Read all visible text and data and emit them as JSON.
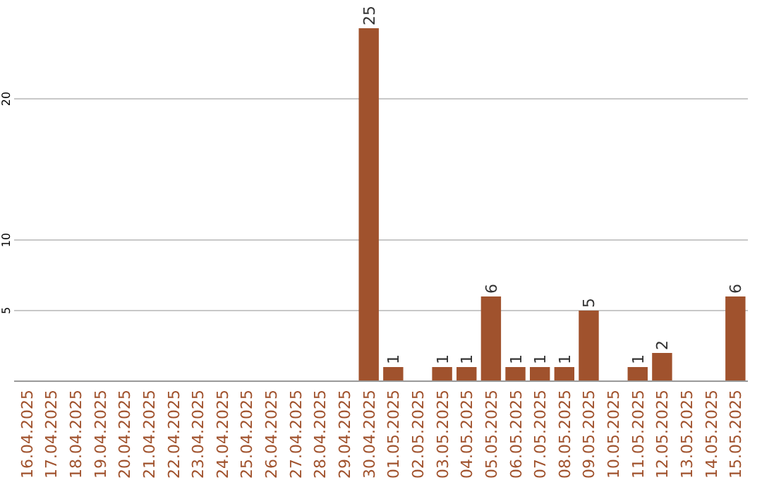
{
  "chart_data": {
    "type": "bar",
    "categories": [
      "16.04.2025",
      "17.04.2025",
      "18.04.2025",
      "19.04.2025",
      "20.04.2025",
      "21.04.2025",
      "22.04.2025",
      "23.04.2025",
      "24.04.2025",
      "25.04.2025",
      "26.04.2025",
      "27.04.2025",
      "28.04.2025",
      "29.04.2025",
      "30.04.2025",
      "01.05.2025",
      "02.05.2025",
      "03.05.2025",
      "04.05.2025",
      "05.05.2025",
      "06.05.2025",
      "07.05.2025",
      "08.05.2025",
      "09.05.2025",
      "10.05.2025",
      "11.05.2025",
      "12.05.2025",
      "13.05.2025",
      "14.05.2025",
      "15.05.2025"
    ],
    "values": [
      0,
      0,
      0,
      0,
      0,
      0,
      0,
      0,
      0,
      0,
      0,
      0,
      0,
      0,
      25,
      1,
      0,
      1,
      1,
      6,
      1,
      1,
      1,
      5,
      0,
      1,
      2,
      0,
      0,
      6
    ],
    "value_labels": [
      null,
      null,
      null,
      null,
      null,
      null,
      null,
      null,
      null,
      null,
      null,
      null,
      null,
      null,
      "25",
      "1",
      null,
      "1",
      "1",
      "6",
      "1",
      "1",
      "1",
      "5",
      null,
      "1",
      "2",
      null,
      null,
      "6"
    ],
    "color": "#a0522d",
    "ylim": [
      0,
      25
    ],
    "yticks": [
      5,
      10,
      20
    ],
    "grid": "y"
  }
}
